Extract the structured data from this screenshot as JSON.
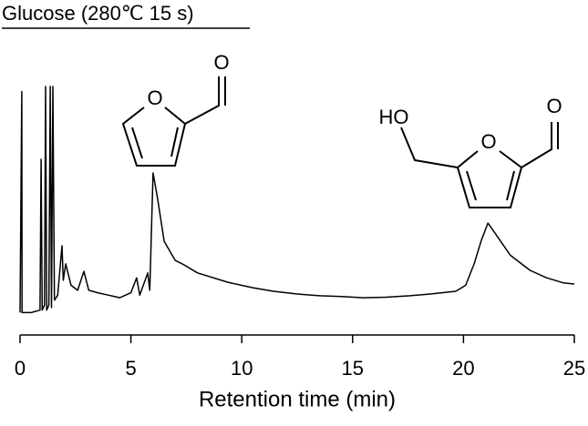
{
  "chart_data": {
    "type": "line",
    "title": "Glucose (280℃ 15 s)",
    "x_label": "Retention time (min)",
    "structure_labels": [
      "O",
      "O",
      "HO",
      "O",
      "O"
    ],
    "x": [
      0,
      0.08,
      0.09,
      0.5,
      0.9,
      0.95,
      1.0,
      1.1,
      1.15,
      1.2,
      1.3,
      1.36,
      1.42,
      1.48,
      1.55,
      1.7,
      1.89,
      1.95,
      2.06,
      2.3,
      2.6,
      2.88,
      3.1,
      3.5,
      4.0,
      4.5,
      5.0,
      5.26,
      5.4,
      5.76,
      5.85,
      6.0,
      6.2,
      6.5,
      7.0,
      7.32,
      8.0,
      9.38,
      10.5,
      11.43,
      12.5,
      13.5,
      14.5,
      15.5,
      16.5,
      17.6,
      18.5,
      19.65,
      20.1,
      20.48,
      20.8,
      21.1,
      21.5,
      22.1,
      23.0,
      23.75,
      24.5,
      25
    ],
    "values": [
      9,
      98,
      9,
      9,
      10,
      70.7,
      10,
      12,
      100,
      10,
      12,
      100,
      11,
      100,
      14,
      16,
      35.9,
      22,
      28.6,
      20,
      18,
      25.6,
      18,
      17,
      16,
      15,
      17,
      23,
      16,
      25,
      18,
      65.2,
      55,
      37.7,
      30,
      28.6,
      25,
      21.2,
      19,
      17.6,
      16.5,
      15.8,
      15.5,
      15,
      15.2,
      15.8,
      16.5,
      17.6,
      20,
      28.6,
      38,
      45,
      40,
      32.2,
      26,
      23,
      21,
      20.5
    ],
    "color": "#000000",
    "xlim": [
      0,
      25
    ],
    "xticks": [
      0,
      5,
      10,
      15,
      20,
      25
    ],
    "ylim": [
      0,
      100
    ]
  }
}
